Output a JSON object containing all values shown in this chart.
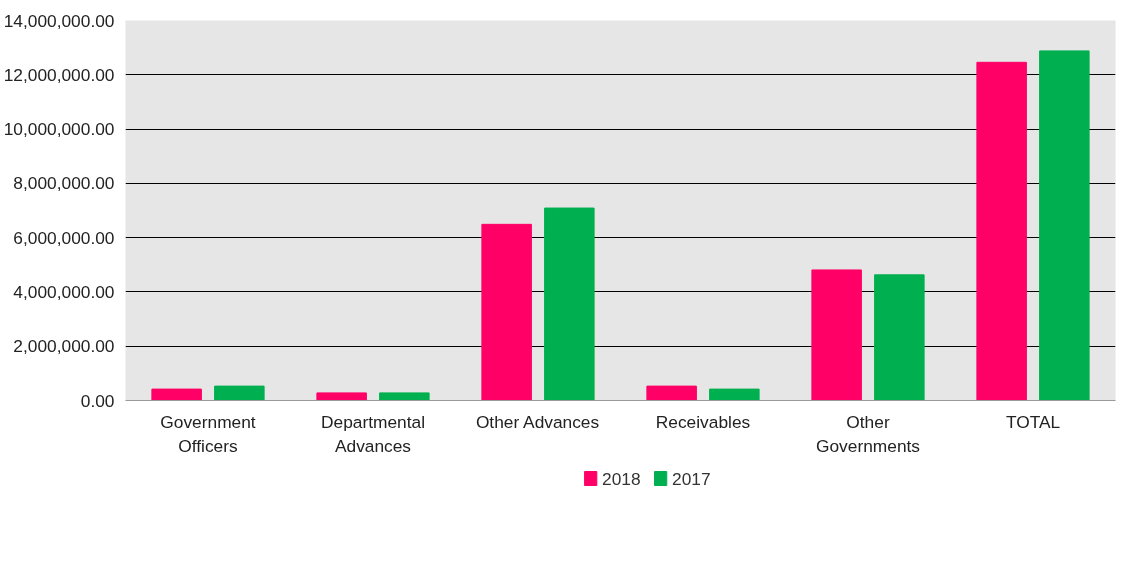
{
  "chart_data": {
    "type": "bar",
    "categories": [
      "Government Officers",
      "Departmental Advances",
      "Other Advances",
      "Receivables",
      "Other Governments",
      "TOTAL"
    ],
    "series": [
      {
        "name": "2018",
        "color": "#ff0066",
        "values": [
          420000,
          280000,
          6490000,
          530000,
          4810000,
          12460000
        ]
      },
      {
        "name": "2017",
        "color": "#00b050",
        "values": [
          530000,
          280000,
          7090000,
          420000,
          4630000,
          12880000
        ]
      }
    ],
    "ylim": [
      0,
      14000000
    ],
    "yticks": [
      {
        "value": 0,
        "label": "0.00"
      },
      {
        "value": 2000000,
        "label": "2,000,000.00"
      },
      {
        "value": 4000000,
        "label": "4,000,000.00"
      },
      {
        "value": 6000000,
        "label": "6,000,000.00"
      },
      {
        "value": 8000000,
        "label": "8,000,000.00"
      },
      {
        "value": 10000000,
        "label": "10,000,000.00"
      },
      {
        "value": 12000000,
        "label": "12,000,000.00"
      },
      {
        "value": 14000000,
        "label": "14,000,000.00"
      }
    ],
    "grid": "y",
    "legend": "bottom"
  }
}
